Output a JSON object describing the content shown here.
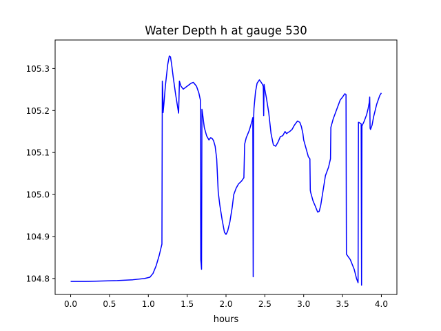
{
  "chart_data": {
    "type": "line",
    "title": "Water Depth h at gauge 530",
    "xlabel": "hours",
    "ylabel": "",
    "xlim": [
      -0.2,
      4.2
    ],
    "ylim": [
      104.762,
      105.368
    ],
    "xticks": [
      0.0,
      0.5,
      1.0,
      1.5,
      2.0,
      2.5,
      3.0,
      3.5,
      4.0
    ],
    "xtick_labels": [
      "0.0",
      "0.5",
      "1.0",
      "1.5",
      "2.0",
      "2.5",
      "3.0",
      "3.5",
      "4.0"
    ],
    "yticks": [
      104.8,
      104.9,
      105.0,
      105.1,
      105.2,
      105.3
    ],
    "ytick_labels": [
      "104.8",
      "104.9",
      "105.0",
      "105.1",
      "105.2",
      "105.3"
    ],
    "grid": false,
    "series": [
      {
        "color": "#0000ff",
        "x": [
          0.0,
          0.2,
          0.4,
          0.6,
          0.8,
          0.95,
          1.02,
          1.06,
          1.1,
          1.14,
          1.175,
          1.18,
          1.185,
          1.19,
          1.2,
          1.22,
          1.25,
          1.27,
          1.285,
          1.3,
          1.32,
          1.35,
          1.38,
          1.39,
          1.4,
          1.42,
          1.45,
          1.5,
          1.55,
          1.58,
          1.62,
          1.65,
          1.67,
          1.675,
          1.68,
          1.685,
          1.69,
          1.7,
          1.72,
          1.75,
          1.78,
          1.8,
          1.82,
          1.84,
          1.86,
          1.88,
          1.9,
          1.905,
          1.92,
          1.95,
          1.98,
          2.0,
          2.02,
          2.05,
          2.08,
          2.1,
          2.13,
          2.16,
          2.2,
          2.23,
          2.24,
          2.26,
          2.3,
          2.33,
          2.345,
          2.35,
          2.355,
          2.36,
          2.38,
          2.4,
          2.43,
          2.45,
          2.47,
          2.48,
          2.485,
          2.49,
          2.5,
          2.52,
          2.55,
          2.58,
          2.61,
          2.64,
          2.67,
          2.7,
          2.73,
          2.76,
          2.78,
          2.8,
          2.82,
          2.85,
          2.88,
          2.92,
          2.95,
          2.97,
          2.99,
          3.0,
          3.03,
          3.06,
          3.08,
          3.085,
          3.09,
          3.12,
          3.15,
          3.18,
          3.2,
          3.22,
          3.25,
          3.28,
          3.32,
          3.345,
          3.35,
          3.38,
          3.42,
          3.47,
          3.5,
          3.53,
          3.545,
          3.55,
          3.6,
          3.65,
          3.68,
          3.7,
          3.705,
          3.71,
          3.74,
          3.745,
          3.75,
          3.755,
          3.78,
          3.81,
          3.83,
          3.845,
          3.85,
          3.855,
          3.86,
          3.88,
          3.9,
          3.94,
          3.98,
          4.0
        ],
        "y": [
          104.793,
          104.793,
          104.794,
          104.795,
          104.797,
          104.8,
          104.803,
          104.812,
          104.83,
          104.855,
          104.882,
          105.27,
          105.25,
          105.195,
          105.215,
          105.26,
          105.31,
          105.33,
          105.328,
          105.31,
          105.28,
          105.24,
          105.205,
          105.194,
          105.27,
          105.258,
          105.251,
          105.258,
          105.265,
          105.267,
          105.258,
          105.242,
          105.225,
          104.845,
          104.835,
          104.822,
          105.203,
          105.19,
          105.16,
          105.14,
          105.13,
          105.135,
          105.134,
          105.128,
          105.115,
          105.085,
          105.005,
          104.998,
          104.975,
          104.94,
          104.91,
          104.905,
          104.912,
          104.935,
          104.97,
          105.0,
          105.015,
          105.025,
          105.032,
          105.04,
          105.12,
          105.135,
          105.153,
          105.172,
          105.183,
          104.804,
          105.178,
          105.205,
          105.245,
          105.265,
          105.273,
          105.268,
          105.262,
          105.257,
          105.188,
          105.262,
          105.25,
          105.23,
          105.195,
          105.145,
          105.118,
          105.115,
          105.125,
          105.138,
          105.14,
          105.15,
          105.145,
          105.148,
          105.15,
          105.155,
          105.165,
          105.175,
          105.172,
          105.162,
          105.145,
          105.13,
          105.11,
          105.09,
          105.085,
          105.01,
          105.005,
          104.985,
          104.972,
          104.958,
          104.96,
          104.975,
          105.01,
          105.045,
          105.065,
          105.085,
          105.16,
          105.18,
          105.2,
          105.225,
          105.232,
          105.24,
          105.238,
          104.858,
          104.845,
          104.822,
          104.8,
          104.79,
          105.172,
          105.172,
          105.168,
          104.784,
          105.165,
          105.165,
          105.175,
          105.19,
          105.205,
          105.22,
          105.232,
          105.158,
          105.155,
          105.165,
          105.185,
          105.215,
          105.236,
          105.242
        ]
      }
    ]
  }
}
